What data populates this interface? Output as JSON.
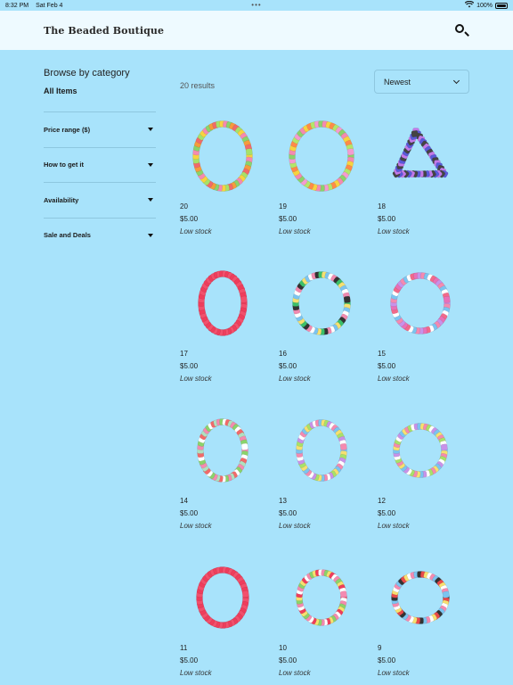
{
  "status": {
    "time": "8:32 PM",
    "date": "Sat Feb 4",
    "battery": "100%"
  },
  "header": {
    "brand": "The Beaded Boutique"
  },
  "sidebar": {
    "title": "Browse by category",
    "all_items": "All Items",
    "filters": [
      "Price range ($)",
      "How to get it",
      "Availability",
      "Sale and Deals"
    ]
  },
  "results": "20 results",
  "sort": {
    "selected": "Newest"
  },
  "products": [
    {
      "number": "20",
      "price": "$5.00",
      "stock": "Low stock",
      "colors": [
        "#f6d340",
        "#f48ab0",
        "#8ad36b",
        "#f59b3d",
        "#f16a6a",
        "#a7e16a"
      ]
    },
    {
      "number": "19",
      "price": "$5.00",
      "stock": "Low stock",
      "colors": [
        "#8ad36b",
        "#f48ab0",
        "#f6d340",
        "#ff8a4a",
        "#b3e66a",
        "#f49bd0"
      ]
    },
    {
      "number": "18",
      "price": "$5.00",
      "stock": "Low stock",
      "colors": [
        "#c27ae8",
        "#5a5ad8",
        "#444444"
      ]
    },
    {
      "number": "17",
      "price": "$5.00",
      "stock": "Low stock",
      "colors": [
        "#ef3d5c",
        "#f2506c"
      ]
    },
    {
      "number": "16",
      "price": "$5.00",
      "stock": "Low stock",
      "colors": [
        "#3cbf6a",
        "#f6e070",
        "#7bc4f0",
        "#ffffff",
        "#f08ab0",
        "#333333"
      ]
    },
    {
      "number": "15",
      "price": "$5.00",
      "stock": "Low stock",
      "colors": [
        "#c892e8",
        "#f48ab0",
        "#7bc4f0",
        "#ffffff",
        "#f16a8a",
        "#e870b8"
      ]
    },
    {
      "number": "14",
      "price": "$5.00",
      "stock": "Low stock",
      "colors": [
        "#f48ab0",
        "#8ad36b",
        "#ffffff",
        "#f16a6a",
        "#b0e0c0"
      ]
    },
    {
      "number": "13",
      "price": "$5.00",
      "stock": "Low stock",
      "colors": [
        "#7bc4f0",
        "#f6e070",
        "#a7e16a",
        "#c892e8",
        "#ffffff",
        "#f48ab0"
      ]
    },
    {
      "number": "12",
      "price": "$5.00",
      "stock": "Low stock",
      "colors": [
        "#7bc4f0",
        "#f6e070",
        "#f48ab0",
        "#a7e16a",
        "#ffffff",
        "#c892e8"
      ]
    },
    {
      "number": "11",
      "price": "$5.00",
      "stock": "Low stock",
      "colors": [
        "#ef3d5c",
        "#f2506c"
      ]
    },
    {
      "number": "10",
      "price": "$5.00",
      "stock": "Low stock",
      "colors": [
        "#ef3d5c",
        "#ffffff",
        "#f48ab0",
        "#8ad36b",
        "#f6e070"
      ]
    },
    {
      "number": "9",
      "price": "$5.00",
      "stock": "Low stock",
      "colors": [
        "#333333",
        "#e84a4a",
        "#f6e070",
        "#ffffff",
        "#f48ab0",
        "#7bc4f0"
      ]
    }
  ]
}
